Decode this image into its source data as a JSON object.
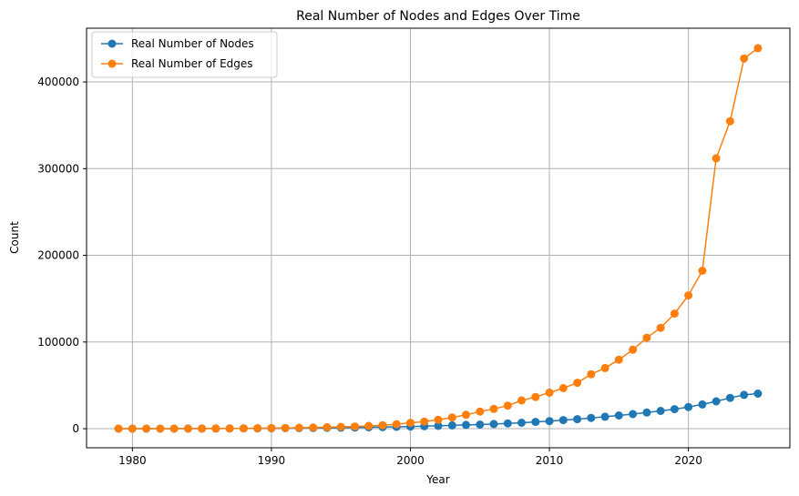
{
  "chart_data": {
    "type": "line",
    "title": "Real Number of Nodes and Edges Over Time",
    "xlabel": "Year",
    "ylabel": "Count",
    "xlim": [
      1976.7,
      2027.3
    ],
    "ylim": [
      -22000,
      462000
    ],
    "xticks": [
      1980,
      1990,
      2000,
      2010,
      2020
    ],
    "yticks": [
      0,
      100000,
      200000,
      300000,
      400000
    ],
    "x_tick_labels": [
      "1980",
      "1990",
      "2000",
      "2010",
      "2020"
    ],
    "y_tick_labels": [
      "0",
      "100000",
      "200000",
      "300000",
      "400000"
    ],
    "grid": true,
    "legend_position": "top-left",
    "x": [
      1979,
      1980,
      1981,
      1982,
      1983,
      1984,
      1985,
      1986,
      1987,
      1988,
      1989,
      1990,
      1991,
      1992,
      1993,
      1994,
      1995,
      1996,
      1997,
      1998,
      1999,
      2000,
      2001,
      2002,
      2003,
      2004,
      2005,
      2006,
      2007,
      2008,
      2009,
      2010,
      2011,
      2012,
      2013,
      2014,
      2015,
      2016,
      2017,
      2018,
      2019,
      2020,
      2021,
      2022,
      2023,
      2024,
      2025
    ],
    "series": [
      {
        "name": "Real Number of Nodes",
        "color": "#1f77b4",
        "values": [
          10,
          20,
          40,
          60,
          90,
          120,
          160,
          200,
          260,
          320,
          400,
          480,
          580,
          700,
          830,
          980,
          1150,
          1350,
          1580,
          1850,
          2150,
          2500,
          2900,
          3350,
          3850,
          4300,
          4800,
          5400,
          6100,
          6900,
          7800,
          8800,
          9900,
          11000,
          12400,
          13800,
          15300,
          16800,
          18600,
          20500,
          22500,
          25000,
          28000,
          31500,
          35500,
          39000,
          40500
        ]
      },
      {
        "name": "Real Number of Edges",
        "color": "#ff7f0e",
        "values": [
          5,
          10,
          20,
          40,
          60,
          100,
          150,
          220,
          300,
          400,
          550,
          700,
          900,
          1100,
          1400,
          1700,
          2100,
          2600,
          3200,
          4000,
          5200,
          6800,
          8200,
          10300,
          13000,
          16000,
          19800,
          22800,
          26600,
          32600,
          36600,
          41600,
          46800,
          53000,
          62800,
          70000,
          79600,
          91100,
          104900,
          116400,
          132800,
          153800,
          182200,
          312000,
          354700,
          427000,
          439000
        ]
      }
    ]
  }
}
